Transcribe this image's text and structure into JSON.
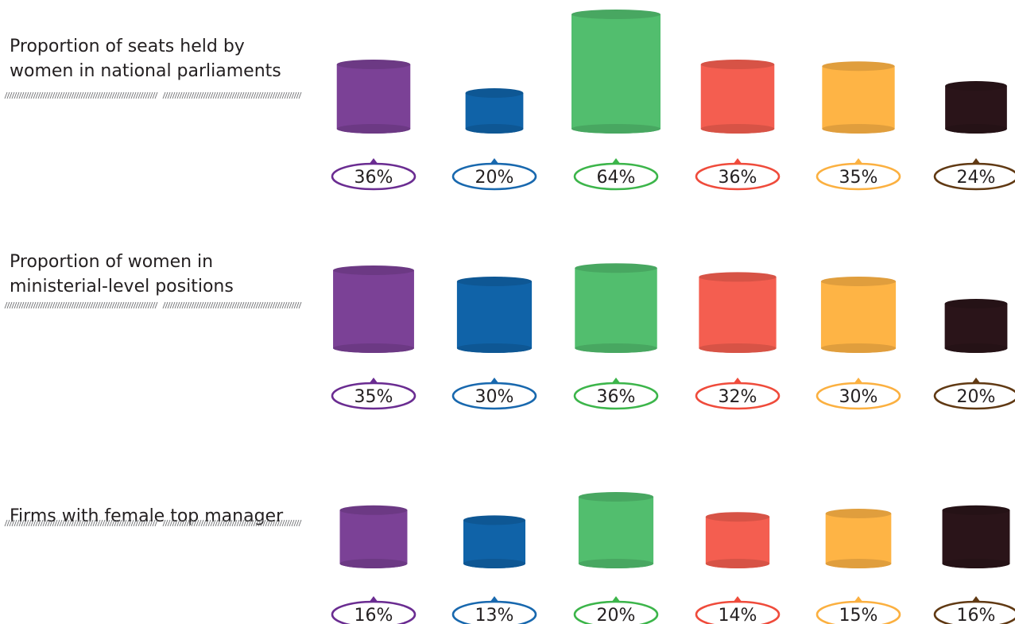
{
  "colors": [
    "#7b4196",
    "#1063a8",
    "#52be6e",
    "#f45e50",
    "#feb445",
    "#2a1419"
  ],
  "label_colors": [
    "#6a2c91",
    "#1868ae",
    "#3cb54a",
    "#ef4b3b",
    "#fbb040",
    "#603913"
  ],
  "chart_data": {
    "type": "bar",
    "value_unit": "%",
    "rows": [
      {
        "label": "Proportion of seats held by\nwomen in national parliaments",
        "values": [
          36,
          20,
          64,
          36,
          35,
          24
        ],
        "value_labels": [
          "36%",
          "20%",
          "64%",
          "36%",
          "35%",
          "24%"
        ]
      },
      {
        "label": "Proportion of women in\nministerial-level positions",
        "values": [
          35,
          30,
          36,
          32,
          30,
          20
        ],
        "value_labels": [
          "35%",
          "30%",
          "36%",
          "32%",
          "30%",
          "20%"
        ]
      },
      {
        "label": "Firms with female top manager",
        "values": [
          16,
          13,
          20,
          14,
          15,
          16
        ],
        "value_labels": [
          "16%",
          "13%",
          "20%",
          "14%",
          "15%",
          "16%"
        ]
      }
    ]
  }
}
